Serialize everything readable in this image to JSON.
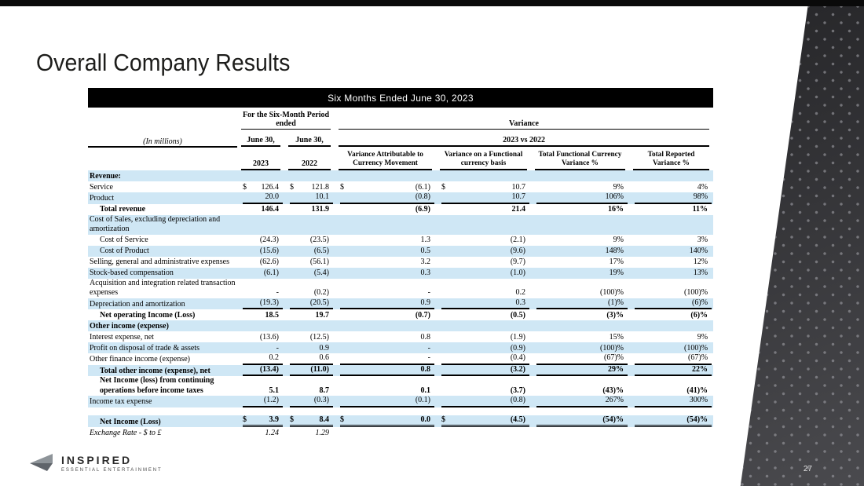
{
  "slide": {
    "title": "Overall Company Results",
    "page_number": "27"
  },
  "logo": {
    "brand": "INSPIRED",
    "tagline": "ESSENTIAL ENTERTAINMENT"
  },
  "colors": {
    "row_highlight": "#cfe7f5",
    "banner_bg": "#000000",
    "side_panel": "#2c2c2f"
  },
  "table": {
    "banner": "Six Months Ended June 30, 2023",
    "header": {
      "in_millions": "(In millions)",
      "period_group": "For the Six-Month Period ended",
      "variance_group": "Variance",
      "variance_sub": "2023 vs 2022",
      "date_label_2023": "June 30,",
      "date_label_2022": "June 30,",
      "year_2023": "2023",
      "year_2022": "2022",
      "variance_cols": [
        "Variance Attributable to Currency Movement",
        "Variance on a Functional currency basis",
        "Total Functional Currency Variance %",
        "Total Reported Variance %"
      ]
    },
    "rows": [
      {
        "label": "Revenue:",
        "bold": true,
        "shaded": true,
        "values": [
          "",
          "",
          "",
          "",
          "",
          ""
        ]
      },
      {
        "label": "Service",
        "dollar": true,
        "values": [
          "126.4",
          "121.8",
          "(6.1)",
          "10.7",
          "9%",
          "4%"
        ]
      },
      {
        "label": "Product",
        "shaded": true,
        "u": 1,
        "values": [
          "20.0",
          "10.1",
          "(0.8)",
          "10.7",
          "106%",
          "98%"
        ]
      },
      {
        "label": "Total revenue",
        "bold": true,
        "indent": true,
        "values": [
          "146.4",
          "131.9",
          "(6.9)",
          "21.4",
          "16%",
          "11%"
        ]
      },
      {
        "label": "Cost of Sales, excluding depreciation and amortization",
        "shaded": true,
        "values": [
          "",
          "",
          "",
          "",
          "",
          ""
        ]
      },
      {
        "label": "Cost of Service",
        "indent": true,
        "values": [
          "(24.3)",
          "(23.5)",
          "1.3",
          "(2.1)",
          "9%",
          "3%"
        ]
      },
      {
        "label": "Cost of Product",
        "indent": true,
        "shaded": true,
        "values": [
          "(15.6)",
          "(6.5)",
          "0.5",
          "(9.6)",
          "148%",
          "140%"
        ]
      },
      {
        "label": "Selling, general and administrative expenses",
        "values": [
          "(62.6)",
          "(56.1)",
          "3.2",
          "(9.7)",
          "17%",
          "12%"
        ]
      },
      {
        "label": "Stock-based compensation",
        "shaded": true,
        "values": [
          "(6.1)",
          "(5.4)",
          "0.3",
          "(1.0)",
          "19%",
          "13%"
        ]
      },
      {
        "label": "Acquisition and integration related transaction expenses",
        "values": [
          "-",
          "(0.2)",
          "-",
          "0.2",
          "(100)%",
          "(100)%"
        ]
      },
      {
        "label": "Depreciation and amortization",
        "shaded": true,
        "u": 1,
        "values": [
          "(19.3)",
          "(20.5)",
          "0.9",
          "0.3",
          "(1)%",
          "(6)%"
        ]
      },
      {
        "label": "Net operating Income (Loss)",
        "bold": true,
        "indent": true,
        "values": [
          "18.5",
          "19.7",
          "(0.7)",
          "(0.5)",
          "(3)%",
          "(6)%"
        ]
      },
      {
        "label": "Other income (expense)",
        "bold": true,
        "shaded": true,
        "values": [
          "",
          "",
          "",
          "",
          "",
          ""
        ]
      },
      {
        "label": "Interest expense, net",
        "values": [
          "(13.6)",
          "(12.5)",
          "0.8",
          "(1.9)",
          "15%",
          "9%"
        ]
      },
      {
        "label": "Profit on disposal of trade & assets",
        "shaded": true,
        "values": [
          "-",
          "0.9",
          "-",
          "(0.9)",
          "(100)%",
          "(100)%"
        ]
      },
      {
        "label": "Other finance income (expense)",
        "u": 1,
        "values": [
          "0.2",
          "0.6",
          "-",
          "(0.4)",
          "(67)%",
          "(67)%"
        ]
      },
      {
        "label": "Total other income (expense), net",
        "bold": true,
        "indent": true,
        "shaded": true,
        "u": 1,
        "values": [
          "(13.4)",
          "(11.0)",
          "0.8",
          "(3.2)",
          "29%",
          "22%"
        ]
      },
      {
        "label": "Net Income (loss) from continuing operations before income taxes",
        "bold": true,
        "indent": true,
        "values": [
          "5.1",
          "8.7",
          "0.1",
          "(3.7)",
          "(43)%",
          "(41)%"
        ]
      },
      {
        "label": "Income tax expense",
        "shaded": true,
        "u": 1,
        "values": [
          "(1.2)",
          "(0.3)",
          "(0.1)",
          "(0.8)",
          "267%",
          "300%"
        ]
      },
      {
        "label": "",
        "spacer": true,
        "values": [
          "",
          "",
          "",
          "",
          "",
          ""
        ]
      },
      {
        "label": "Net Income (Loss)",
        "bold": true,
        "indent": true,
        "shaded": true,
        "dollar": true,
        "u": 2,
        "values": [
          "3.9",
          "8.4",
          "0.0",
          "(4.5)",
          "(54)%",
          "(54)%"
        ]
      },
      {
        "label": "Exchange Rate - $ to £",
        "italic": true,
        "values": [
          "1.24",
          "1.29",
          "",
          "",
          "",
          ""
        ]
      }
    ]
  }
}
